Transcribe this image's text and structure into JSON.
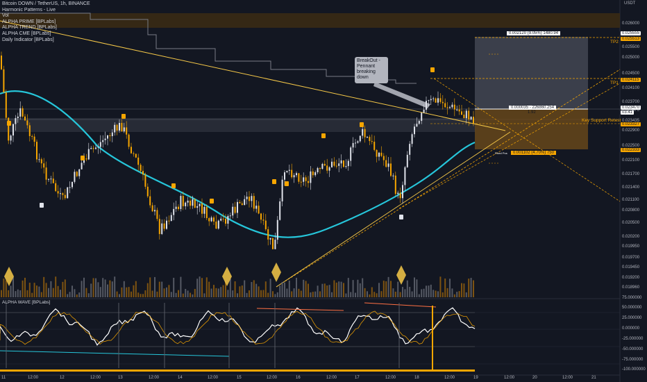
{
  "legend": {
    "symbol": "Bitcoin DOWN / TetherUS, 1h, BINANCE",
    "indicators": [
      "Harmonic Patterns - Live",
      "Vol",
      "ALPHA PRIME [BPLabs]",
      "ALPHA TREND [BPLabs]",
      "ALPHA CME [BPLabs]",
      "Daily Indicator [BPLabs]"
    ]
  },
  "currency": "USDT",
  "price_axis": {
    "labels": [
      "0.026000",
      "0.025500",
      "0.025000",
      "0.024500",
      "0.024100",
      "0.023700",
      "0.023470",
      "0.023435",
      "0.022900",
      "0.022500",
      "0.022100",
      "0.021700",
      "0.021400",
      "0.021100",
      "0.020800",
      "0.020500",
      "0.020200",
      "0.019950",
      "0.019700",
      "0.019450",
      "0.019200",
      "0.018960"
    ],
    "highlighted": [
      {
        "text": "0.025555",
        "bg": "#ffffff",
        "fg": "#131722"
      },
      {
        "text": "0.025513",
        "bg": "#f7a600",
        "fg": "#131722"
      },
      {
        "text": "0.024115",
        "bg": "#f7a600",
        "fg": "#131722"
      },
      {
        "text": "0.023470",
        "bg": "#ffffff",
        "fg": "#131722"
      },
      {
        "text": "03:41",
        "bg": "#ffffff",
        "fg": "#131722"
      },
      {
        "text": "0.023327",
        "bg": "#f7a600",
        "fg": "#131722"
      },
      {
        "text": "0.022333",
        "bg": "#f7a600",
        "fg": "#131722"
      }
    ]
  },
  "osc_axis": {
    "labels": [
      "75.000000",
      "50.000000",
      "25.000000",
      "0.000000",
      "-25.000000",
      "-50.000000",
      "-75.000000",
      "-100.000000"
    ]
  },
  "time_axis": {
    "labels": [
      "11",
      "12:00",
      "12",
      "12:00",
      "13",
      "12:00",
      "14",
      "12:00",
      "15",
      "12:00",
      "16",
      "12:00",
      "17",
      "12:00",
      "18",
      "12:00",
      "19",
      "12:00",
      "20",
      "12:00",
      "21"
    ]
  },
  "annotations": {
    "tp2": "TP2",
    "tp1": "TP1",
    "key_support": "Key Support Retest",
    "target_box": "0.002120 (9.05%) 1480.94",
    "entry_box": "0.000035 - 226860.254",
    "entry_ratio": "1.92",
    "stop_box": "0.001102 (4.70%) 750",
    "stop_small": "Fixed Pos",
    "callout": "BreakOut - Pennant breaking down"
  },
  "oscillator": {
    "title": "ALPHA WAVE [BPLabs]"
  },
  "colors": {
    "background": "#131722",
    "accent": "#f7a600",
    "wave": "#26c6da",
    "long": "#e0e3eb",
    "short": "#f7a600",
    "support": "#2a2e39"
  }
}
